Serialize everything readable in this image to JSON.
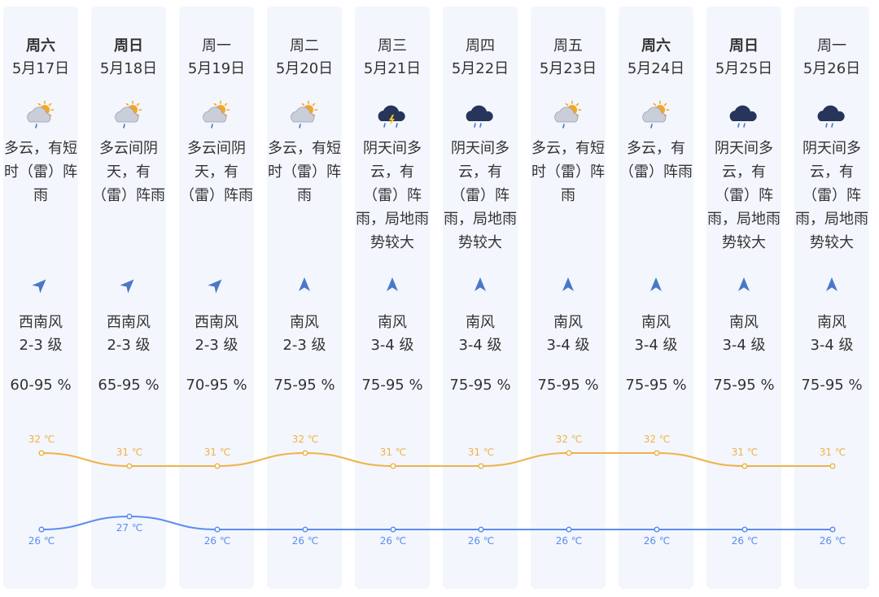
{
  "forecast": [
    {
      "day": "周六",
      "date": "5月17日",
      "bold": true,
      "icon": "cloudy-sun-rain-icon",
      "condition": "多云，有短时（雷）阵雨",
      "wind_dir": "西南风",
      "wind_level": "2-3 级",
      "wind_arrow": "southwest-arrow-icon",
      "humidity": "60-95 %",
      "high": 32,
      "high_label": "32 ℃",
      "low": 26,
      "low_label": "26 ℃"
    },
    {
      "day": "周日",
      "date": "5月18日",
      "bold": true,
      "icon": "cloudy-sun-rain-icon",
      "condition": "多云间阴天，有（雷）阵雨",
      "wind_dir": "西南风",
      "wind_level": "2-3 级",
      "wind_arrow": "southwest-arrow-icon",
      "humidity": "65-95 %",
      "high": 31,
      "high_label": "31 ℃",
      "low": 27,
      "low_label": "27 ℃"
    },
    {
      "day": "周一",
      "date": "5月19日",
      "bold": false,
      "icon": "cloudy-sun-rain-icon",
      "condition": "多云间阴天，有（雷）阵雨",
      "wind_dir": "西南风",
      "wind_level": "2-3 级",
      "wind_arrow": "southwest-arrow-icon",
      "humidity": "70-95 %",
      "high": 31,
      "high_label": "31 ℃",
      "low": 26,
      "low_label": "26 ℃"
    },
    {
      "day": "周二",
      "date": "5月20日",
      "bold": false,
      "icon": "cloudy-sun-rain-icon",
      "condition": "多云，有短时（雷）阵雨",
      "wind_dir": "南风",
      "wind_level": "2-3 级",
      "wind_arrow": "south-arrow-icon",
      "humidity": "75-95 %",
      "high": 32,
      "high_label": "32 ℃",
      "low": 26,
      "low_label": "26 ℃"
    },
    {
      "day": "周三",
      "date": "5月21日",
      "bold": false,
      "icon": "thunderstorm-cloud-icon",
      "condition": "阴天间多云，有（雷）阵雨，局地雨势较大",
      "wind_dir": "南风",
      "wind_level": "3-4 级",
      "wind_arrow": "south-arrow-icon",
      "humidity": "75-95 %",
      "high": 31,
      "high_label": "31 ℃",
      "low": 26,
      "low_label": "26 ℃"
    },
    {
      "day": "周四",
      "date": "5月22日",
      "bold": false,
      "icon": "dark-rain-cloud-icon",
      "condition": "阴天间多云，有（雷）阵雨，局地雨势较大",
      "wind_dir": "南风",
      "wind_level": "3-4 级",
      "wind_arrow": "south-arrow-icon",
      "humidity": "75-95 %",
      "high": 31,
      "high_label": "31 ℃",
      "low": 26,
      "low_label": "26 ℃"
    },
    {
      "day": "周五",
      "date": "5月23日",
      "bold": false,
      "icon": "cloudy-sun-rain-icon",
      "condition": "多云，有短时（雷）阵雨",
      "wind_dir": "南风",
      "wind_level": "3-4 级",
      "wind_arrow": "south-arrow-icon",
      "humidity": "75-95 %",
      "high": 32,
      "high_label": "32 ℃",
      "low": 26,
      "low_label": "26 ℃"
    },
    {
      "day": "周六",
      "date": "5月24日",
      "bold": true,
      "icon": "cloudy-sun-rain-icon",
      "condition": "多云，有（雷）阵雨",
      "wind_dir": "南风",
      "wind_level": "3-4 级",
      "wind_arrow": "south-arrow-icon",
      "humidity": "75-95 %",
      "high": 32,
      "high_label": "32 ℃",
      "low": 26,
      "low_label": "26 ℃"
    },
    {
      "day": "周日",
      "date": "5月25日",
      "bold": true,
      "icon": "dark-rain-cloud-icon",
      "condition": "阴天间多云，有（雷）阵雨，局地雨势较大",
      "wind_dir": "南风",
      "wind_level": "3-4 级",
      "wind_arrow": "south-arrow-icon",
      "humidity": "75-95 %",
      "high": 31,
      "high_label": "31 ℃",
      "low": 26,
      "low_label": "26 ℃"
    },
    {
      "day": "周一",
      "date": "5月26日",
      "bold": false,
      "icon": "dark-rain-cloud-icon",
      "condition": "阴天间多云，有（雷）阵雨，局地雨势较大",
      "wind_dir": "南风",
      "wind_level": "3-4 级",
      "wind_arrow": "south-arrow-icon",
      "humidity": "75-95 %",
      "high": 31,
      "high_label": "31 ℃",
      "low": 26,
      "low_label": "26 ℃"
    }
  ],
  "colors": {
    "column_bg": "#f3f6fc",
    "high_line": "#f0b24a",
    "low_line": "#5b8def",
    "arrow": "#4a78c8",
    "text": "#333333"
  }
}
